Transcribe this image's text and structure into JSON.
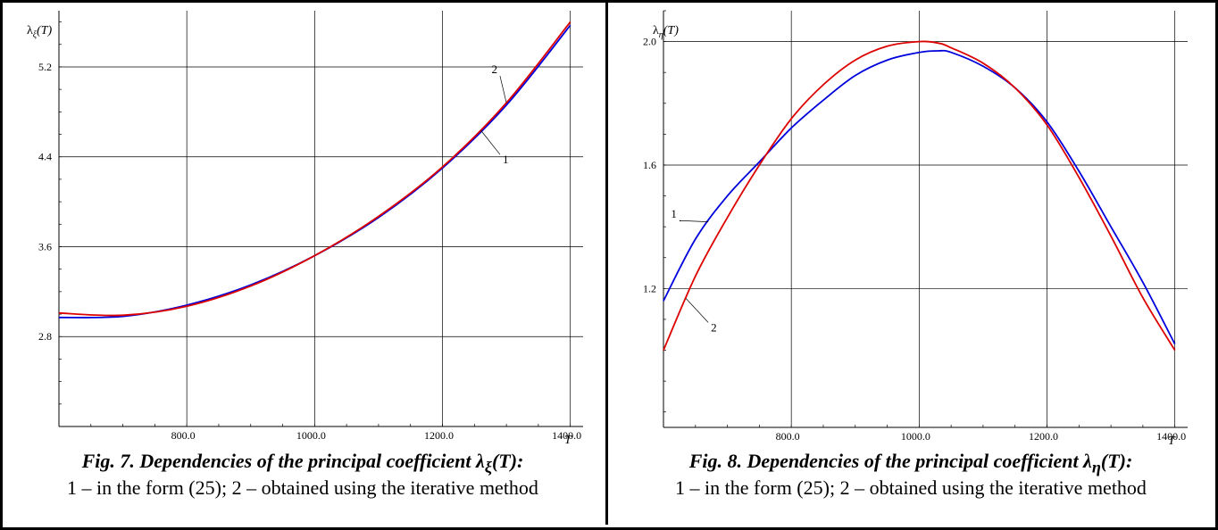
{
  "chart_data": [
    {
      "type": "line",
      "xlabel": "T",
      "ylabel": {
        "main": "λ",
        "sub": "ξ",
        "tail": "(T)"
      },
      "xlim": [
        600,
        1420
      ],
      "ylim": [
        2.0,
        5.7
      ],
      "x_ticks": [
        800,
        1000,
        1200,
        1400
      ],
      "x_tick_labels": [
        "800.0",
        "1000.0",
        "1200.0",
        "1400.0"
      ],
      "y_ticks": [
        2.8,
        3.6,
        4.4,
        5.2
      ],
      "y_tick_labels": [
        "2.8",
        "3.6",
        "4.4",
        "5.2"
      ],
      "grid": true,
      "series": [
        {
          "name": "1",
          "color": "#0000dd",
          "x": [
            600,
            700,
            800,
            900,
            1000,
            1100,
            1200,
            1300,
            1400
          ],
          "y": [
            2.97,
            2.98,
            3.08,
            3.26,
            3.52,
            3.86,
            4.3,
            4.86,
            5.57
          ]
        },
        {
          "name": "2",
          "color": "#dd0000",
          "x": [
            600,
            700,
            800,
            900,
            1000,
            1100,
            1200,
            1300,
            1400
          ],
          "y": [
            3.01,
            2.99,
            3.07,
            3.25,
            3.52,
            3.87,
            4.31,
            4.88,
            5.6
          ]
        }
      ],
      "annotations": [
        {
          "text": "1",
          "series": "1",
          "at_x": 1260,
          "label_x": 1290,
          "label_y": 4.42
        },
        {
          "text": "2",
          "series": "2",
          "at_x": 1300,
          "label_x": 1290,
          "label_y": 5.12
        }
      ],
      "caption": {
        "title": "Fig. 7. Dependencies of the principal coefficient λ",
        "title_sub": "ξ",
        "title_tail": "(T):",
        "legend_text": "1 – in the form (25); 2 – obtained using the iterative method"
      }
    },
    {
      "type": "line",
      "xlabel": "T",
      "ylabel": {
        "main": "λ",
        "sub": "η",
        "tail": "(T)"
      },
      "xlim": [
        600,
        1420
      ],
      "ylim": [
        0.75,
        2.1
      ],
      "x_ticks": [
        800,
        1000,
        1200,
        1400
      ],
      "x_tick_labels": [
        "800.0",
        "1000.0",
        "1200.0",
        "1400.0"
      ],
      "y_ticks": [
        1.2,
        1.6,
        2.0
      ],
      "y_tick_labels": [
        "1.2",
        "1.6",
        "2.0"
      ],
      "grid": true,
      "series": [
        {
          "name": "1",
          "color": "#0000dd",
          "x": [
            600,
            650,
            700,
            750,
            800,
            850,
            900,
            950,
            1000,
            1030,
            1050,
            1100,
            1150,
            1200,
            1250,
            1300,
            1350,
            1400
          ],
          "y": [
            1.16,
            1.36,
            1.5,
            1.61,
            1.72,
            1.81,
            1.89,
            1.94,
            1.965,
            1.97,
            1.965,
            1.92,
            1.85,
            1.74,
            1.58,
            1.4,
            1.22,
            1.02
          ]
        },
        {
          "name": "2",
          "color": "#dd0000",
          "x": [
            600,
            650,
            700,
            750,
            800,
            850,
            900,
            950,
            1000,
            1030,
            1050,
            1100,
            1150,
            1200,
            1250,
            1300,
            1350,
            1400
          ],
          "y": [
            1.0,
            1.24,
            1.43,
            1.6,
            1.75,
            1.86,
            1.94,
            1.985,
            2.0,
            1.995,
            1.98,
            1.93,
            1.85,
            1.73,
            1.56,
            1.37,
            1.17,
            1.0
          ]
        }
      ],
      "annotations": [
        {
          "text": "1",
          "series": "1",
          "at_x": 670,
          "label_x": 625,
          "label_y": 1.42
        },
        {
          "text": "2",
          "series": "2",
          "at_x": 635,
          "label_x": 670,
          "label_y": 1.09
        }
      ],
      "caption": {
        "title": "Fig. 8. Dependencies of the principal coefficient λ",
        "title_sub": "η",
        "title_tail": "(T):",
        "legend_text": "1 – in the form (25); 2 –  obtained using the iterative method"
      }
    }
  ]
}
